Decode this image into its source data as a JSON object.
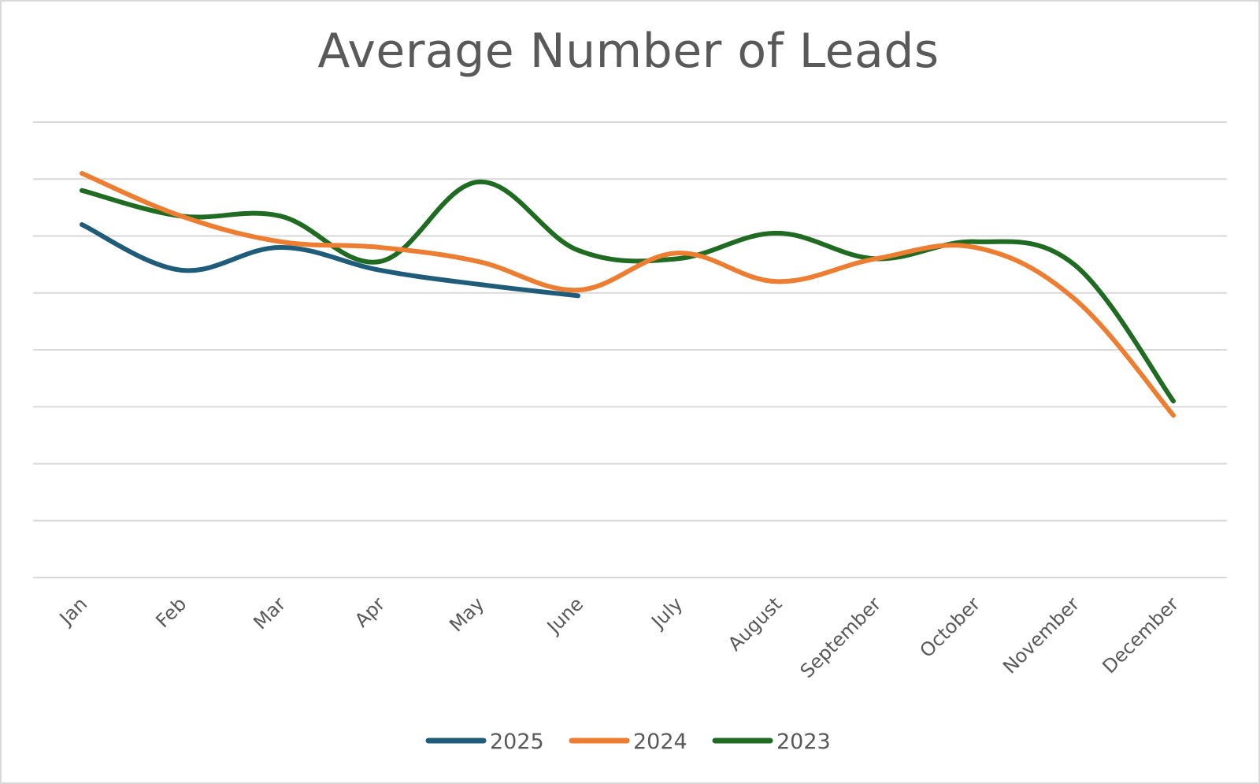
{
  "chart_data": {
    "type": "line",
    "title": "Average Number of Leads",
    "xlabel": "",
    "ylabel": "",
    "categories": [
      "Jan",
      "Feb",
      "Mar",
      "Apr",
      "May",
      "June",
      "July",
      "August",
      "September",
      "October",
      "November",
      "December"
    ],
    "ylim": [
      0,
      8
    ],
    "grid": true,
    "legend_position": "bottom",
    "smooth": true,
    "series": [
      {
        "name": "2025",
        "color": "#1f5c7a",
        "values": [
          6.2,
          5.4,
          5.8,
          5.4,
          5.15,
          4.95,
          null,
          null,
          null,
          null,
          null,
          null
        ]
      },
      {
        "name": "2024",
        "color": "#ed7d31",
        "values": [
          7.1,
          6.35,
          5.9,
          5.8,
          5.55,
          5.05,
          5.7,
          5.2,
          5.6,
          5.8,
          4.9,
          2.85
        ]
      },
      {
        "name": "2023",
        "color": "#1f6b22",
        "values": [
          6.8,
          6.35,
          6.35,
          5.55,
          6.95,
          5.75,
          5.6,
          6.05,
          5.6,
          5.9,
          5.5,
          3.1
        ]
      }
    ]
  }
}
